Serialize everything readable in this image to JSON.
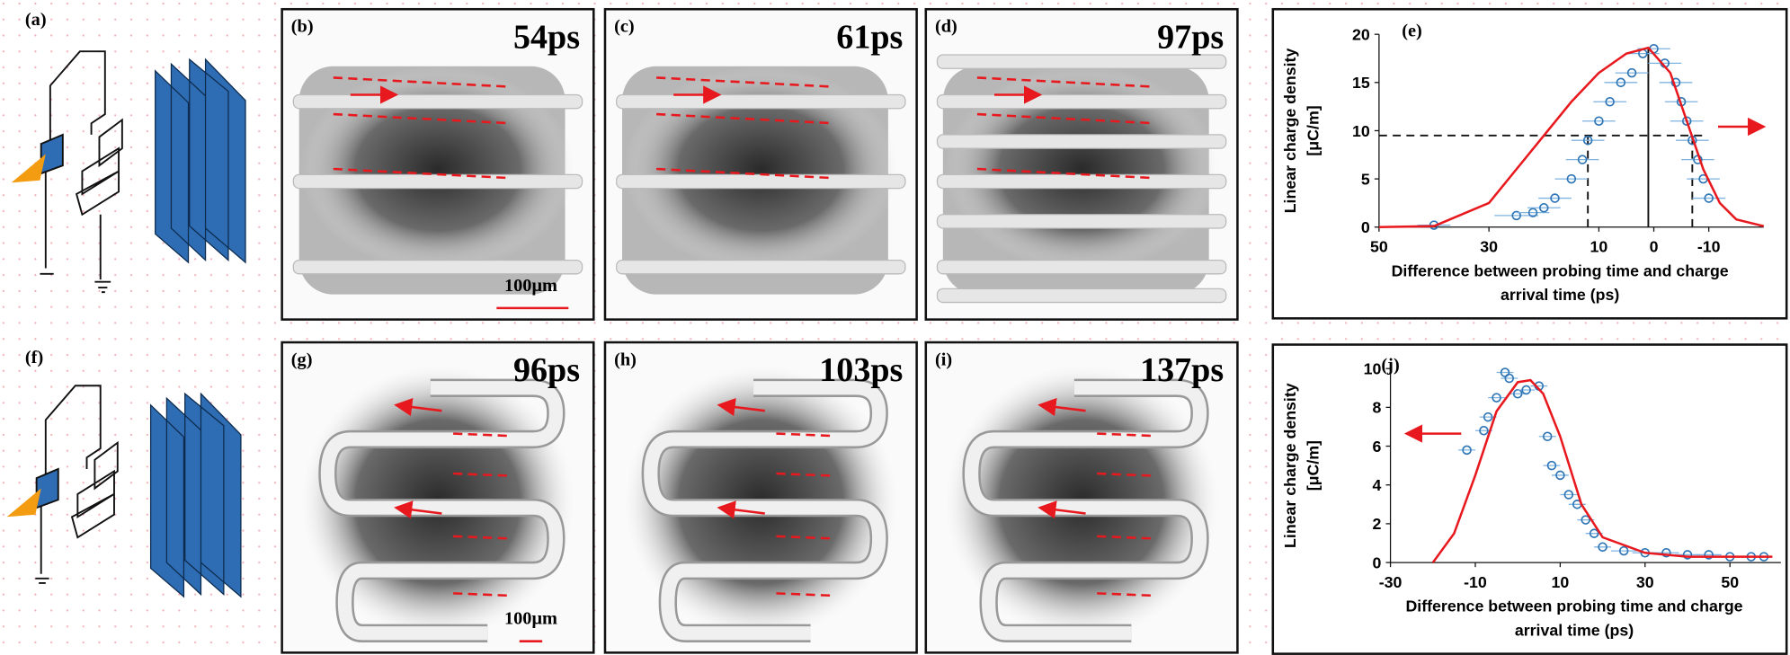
{
  "figure": {
    "schematics": [
      {
        "label": "(a)"
      },
      {
        "label": "(f)"
      }
    ],
    "images": [
      {
        "label": "(b)",
        "time": "54ps",
        "scale": "100μm"
      },
      {
        "label": "(c)",
        "time": "61ps"
      },
      {
        "label": "(d)",
        "time": "97ps"
      },
      {
        "label": "(g)",
        "time": "96ps",
        "scale": "100μm"
      },
      {
        "label": "(h)",
        "time": "103ps"
      },
      {
        "label": "(i)",
        "time": "137ps"
      }
    ]
  },
  "chart_data": [
    {
      "type": "scatter",
      "label": "(e)",
      "xlabel": [
        "Difference between probing time and charge",
        "arrival time (ps)"
      ],
      "ylabel": [
        "Linear charge density",
        "[μC/m]"
      ],
      "xlim": [
        50,
        -20
      ],
      "ylim": [
        0,
        20
      ],
      "xticks": [
        50,
        30,
        10,
        0,
        -10
      ],
      "yticks": [
        0,
        5,
        10,
        15,
        20
      ],
      "guides": {
        "y": 9.5,
        "x_dashed": [
          12,
          -7
        ],
        "x_peak": 1,
        "y_peak": 18.6
      },
      "series": [
        {
          "color": "#2e75b6",
          "marker": "circle",
          "x": [
            40,
            25,
            22,
            20,
            18,
            15,
            13,
            12,
            10,
            8,
            6,
            4,
            2,
            0,
            -2,
            -4,
            -5,
            -6,
            -7,
            -8,
            -9,
            -10
          ],
          "values": [
            0.2,
            1.2,
            1.5,
            2,
            3,
            5,
            7,
            9,
            11,
            13,
            15,
            16,
            18,
            18.5,
            17,
            15,
            13,
            11,
            9,
            7,
            5,
            3
          ],
          "xerr": [
            3,
            4,
            3,
            3,
            3,
            3,
            3,
            3,
            3,
            3,
            3,
            3,
            3,
            3,
            3,
            3,
            3,
            3,
            3,
            3,
            3,
            3
          ]
        },
        {
          "color": "#e8191e",
          "line": true,
          "x": [
            50,
            40,
            30,
            25,
            20,
            15,
            10,
            5,
            1,
            -3,
            -6,
            -9,
            -12,
            -15,
            -20
          ],
          "values": [
            0,
            0.1,
            2.5,
            6,
            9.5,
            13,
            16,
            18,
            18.6,
            16,
            11,
            6,
            2.5,
            0.8,
            0.1
          ]
        }
      ]
    },
    {
      "type": "scatter",
      "label": "(j)",
      "xlabel": [
        "Difference between probing time and charge",
        "arrival time (ps)"
      ],
      "ylabel": [
        "Linear charge density",
        "[μC/m]"
      ],
      "xlim": [
        -30,
        62
      ],
      "ylim": [
        0,
        10
      ],
      "xticks": [
        -30,
        -10,
        10,
        30,
        50
      ],
      "yticks": [
        0,
        2,
        4,
        6,
        8,
        10
      ],
      "series": [
        {
          "color": "#2e75b6",
          "marker": "circle",
          "x": [
            -12,
            -8,
            -7,
            -5,
            -3,
            -2,
            0,
            2,
            5,
            7,
            8,
            10,
            12,
            14,
            16,
            18,
            20,
            25,
            30,
            35,
            40,
            45,
            50,
            55,
            58
          ],
          "values": [
            5.8,
            6.8,
            7.5,
            8.5,
            9.8,
            9.5,
            8.7,
            8.9,
            9.1,
            6.5,
            5,
            4.5,
            3.5,
            3,
            2.2,
            1.5,
            0.8,
            0.6,
            0.5,
            0.5,
            0.4,
            0.4,
            0.3,
            0.3,
            0.3
          ],
          "xerr": [
            2,
            2,
            2,
            2,
            2,
            2,
            2,
            2,
            2,
            2,
            2,
            2,
            2,
            2,
            2,
            2,
            2,
            3,
            3,
            3,
            3,
            3,
            3,
            3,
            2
          ]
        },
        {
          "color": "#e8191e",
          "line": true,
          "x": [
            -20,
            -15,
            -10,
            -5,
            0,
            3,
            6,
            10,
            15,
            20,
            30,
            40,
            60
          ],
          "values": [
            0,
            1.5,
            4.5,
            7.8,
            9.3,
            9.4,
            8.7,
            6.5,
            3,
            1.3,
            0.5,
            0.3,
            0.3
          ]
        }
      ]
    }
  ]
}
